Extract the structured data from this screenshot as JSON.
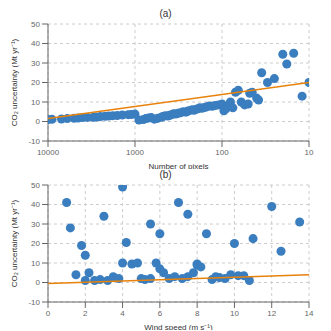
{
  "chart_data": [
    {
      "type": "scatter",
      "title": "(a)",
      "xlabel": "Number of pixels",
      "ylabel": "CO₂ uncertainty (Mt yr⁻¹)",
      "log": "x",
      "xlim": [
        10000,
        10
      ],
      "xticks": [
        10000,
        1000,
        100,
        10
      ],
      "ylim": [
        -10,
        50
      ],
      "yticks": [
        -10,
        0,
        10,
        20,
        30,
        40,
        50
      ],
      "grid": true,
      "series": [
        {
          "type": "scatter",
          "color": "#3a7ebf",
          "x": [
            10000,
            9000,
            7000,
            6000,
            5000,
            4500,
            4000,
            3500,
            3000,
            2800,
            2500,
            2200,
            2000,
            1800,
            1600,
            1400,
            1200,
            1100,
            1000,
            900,
            800,
            750,
            700,
            650,
            600,
            550,
            500,
            480,
            450,
            420,
            400,
            380,
            360,
            340,
            320,
            300,
            280,
            260,
            250,
            240,
            220,
            210,
            200,
            190,
            180,
            170,
            160,
            150,
            140,
            130,
            120,
            110,
            100,
            95,
            90,
            85,
            80,
            75,
            70,
            65,
            60,
            55,
            50,
            48,
            45,
            40,
            38,
            35,
            30,
            25,
            20,
            18,
            15,
            12,
            10
          ],
          "values": [
            1.0,
            1.1,
            1.3,
            1.5,
            1.7,
            1.8,
            2.0,
            2.1,
            2.2,
            2.3,
            2.5,
            2.7,
            2.8,
            3.0,
            3.1,
            3.3,
            3.5,
            3.6,
            3.8,
            0.8,
            1.0,
            1.5,
            1.8,
            2.0,
            1.2,
            1.6,
            2.2,
            2.5,
            3.0,
            2.8,
            3.2,
            3.5,
            4.0,
            3.8,
            4.2,
            4.5,
            5.0,
            4.8,
            5.2,
            5.5,
            6.0,
            5.8,
            6.2,
            6.5,
            7.0,
            6.8,
            7.2,
            7.5,
            8.0,
            7.8,
            8.2,
            8.5,
            9.0,
            5.5,
            6.5,
            8.0,
            10.0,
            7.0,
            15.0,
            16.0,
            10.0,
            8.5,
            9.0,
            14.5,
            15.0,
            12.0,
            11.0,
            25.0,
            20.0,
            22.0,
            34.5,
            29.5,
            35.0,
            13.0,
            20.0
          ]
        },
        {
          "type": "line",
          "color": "#e8820a",
          "x": [
            10000,
            10
          ],
          "values": [
            1.5,
            20.0
          ]
        }
      ]
    },
    {
      "type": "scatter",
      "title": "(b)",
      "xlabel": "Wind speed (m s⁻¹)",
      "ylabel": "CO₂ uncertainty (Mt yr⁻¹)",
      "xlim": [
        0,
        14
      ],
      "xticks": [
        0,
        2,
        4,
        6,
        8,
        10,
        12,
        14
      ],
      "ylim": [
        -10,
        50
      ],
      "yticks": [
        -10,
        0,
        10,
        20,
        30,
        40,
        50
      ],
      "grid": true,
      "series": [
        {
          "type": "scatter",
          "color": "#3a7ebf",
          "x": [
            1.0,
            1.2,
            1.5,
            1.8,
            2.0,
            2.0,
            2.2,
            2.5,
            2.8,
            3.0,
            3.2,
            3.5,
            3.8,
            4.0,
            4.0,
            4.2,
            4.5,
            4.8,
            5.0,
            5.2,
            5.5,
            5.5,
            5.8,
            6.0,
            6.0,
            6.2,
            6.5,
            6.8,
            7.0,
            7.2,
            7.5,
            7.5,
            7.8,
            8.0,
            8.0,
            8.2,
            8.5,
            8.8,
            9.0,
            9.2,
            9.5,
            9.8,
            10.0,
            10.2,
            10.5,
            10.8,
            11.0,
            12.0,
            12.5,
            13.5
          ],
          "values": [
            41.0,
            28.0,
            4.0,
            19.0,
            14.0,
            1.0,
            5.0,
            1.0,
            1.5,
            34.0,
            1.0,
            3.0,
            2.0,
            49.0,
            10.0,
            20.5,
            9.5,
            10.0,
            2.0,
            1.5,
            30.0,
            2.0,
            10.0,
            25.0,
            7.0,
            5.0,
            2.0,
            3.0,
            41.0,
            2.0,
            35.0,
            3.0,
            5.0,
            9.0,
            9.5,
            8.0,
            25.0,
            1.5,
            3.0,
            2.5,
            2.0,
            4.0,
            20.0,
            3.5,
            3.5,
            1.0,
            22.5,
            39.0,
            16.0,
            31.0
          ]
        },
        {
          "type": "line",
          "color": "#e8820a",
          "x": [
            0,
            14
          ],
          "values": [
            -0.5,
            4.0
          ]
        }
      ]
    }
  ]
}
